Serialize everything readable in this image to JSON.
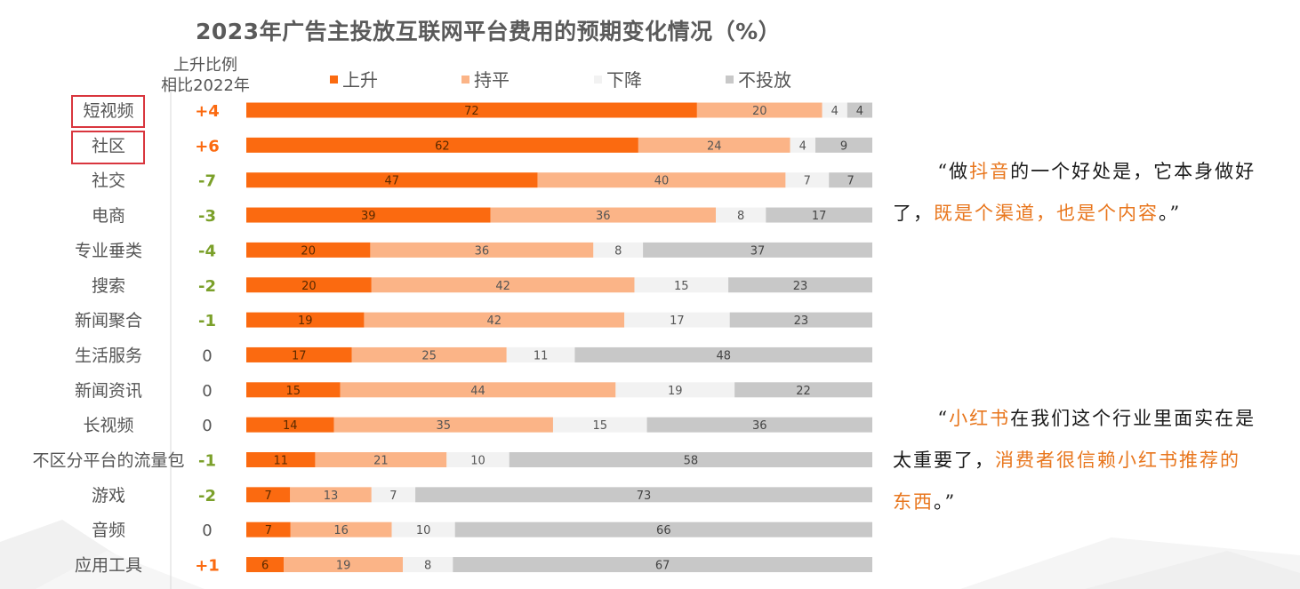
{
  "title": "2023年广告主投放互联网平台费用的预期变化情况（%）",
  "change_header": [
    "上升比例",
    "相比2022年"
  ],
  "colors": {
    "rise": "#fb6a10",
    "flat": "#fbb487",
    "fall": "#f2f2f2",
    "none": "#c8c8c8",
    "change_pos": "#fb6a10",
    "change_neg": "#7ba02a",
    "change_zero": "#555555",
    "highlight_box": "#d9363e",
    "quote_highlight": "#e8761d"
  },
  "chart_data": {
    "type": "bar",
    "orientation": "horizontal",
    "stacked": true,
    "unit": "%",
    "title": "2023年广告主投放互联网平台费用的预期变化情况（%）",
    "legend_position": "top",
    "categories": [
      "短视频",
      "社区",
      "社交",
      "电商",
      "专业垂类",
      "搜索",
      "新闻聚合",
      "生活服务",
      "新闻资讯",
      "长视频",
      "不区分平台的流量包",
      "游戏",
      "音频",
      "应用工具"
    ],
    "highlighted_categories": [
      "短视频",
      "社区"
    ],
    "series": [
      {
        "name": "上升",
        "values": [
          72,
          62,
          47,
          39,
          20,
          20,
          19,
          17,
          15,
          14,
          11,
          7,
          7,
          6
        ]
      },
      {
        "name": "持平",
        "values": [
          20,
          24,
          40,
          36,
          36,
          42,
          42,
          25,
          44,
          35,
          21,
          13,
          16,
          19
        ]
      },
      {
        "name": "下降",
        "values": [
          4,
          4,
          7,
          8,
          8,
          15,
          17,
          11,
          19,
          15,
          10,
          7,
          10,
          8
        ]
      },
      {
        "name": "不投放",
        "values": [
          4,
          9,
          7,
          17,
          37,
          23,
          23,
          48,
          22,
          36,
          58,
          73,
          66,
          67
        ]
      }
    ],
    "rise_change_vs_2022": [
      "+4",
      "+6",
      "-7",
      "-3",
      "-4",
      "-2",
      "-1",
      "0",
      "0",
      "0",
      "-1",
      "-2",
      "0",
      "+1"
    ]
  },
  "quotes": [
    {
      "segments": [
        {
          "text": "“做",
          "hl": false
        },
        {
          "text": "抖音",
          "hl": true
        },
        {
          "text": "的一个好处是，它本身做好了，",
          "hl": false
        },
        {
          "text": "既是个渠道，也是个内容",
          "hl": true
        },
        {
          "text": "。”",
          "hl": false
        }
      ]
    },
    {
      "segments": [
        {
          "text": "“",
          "hl": false
        },
        {
          "text": "小红书",
          "hl": true
        },
        {
          "text": "在我们这个行业里面实在是太重要了，",
          "hl": false
        },
        {
          "text": "消费者很信赖小红书推荐的东西",
          "hl": true
        },
        {
          "text": "。”",
          "hl": false
        }
      ]
    }
  ]
}
